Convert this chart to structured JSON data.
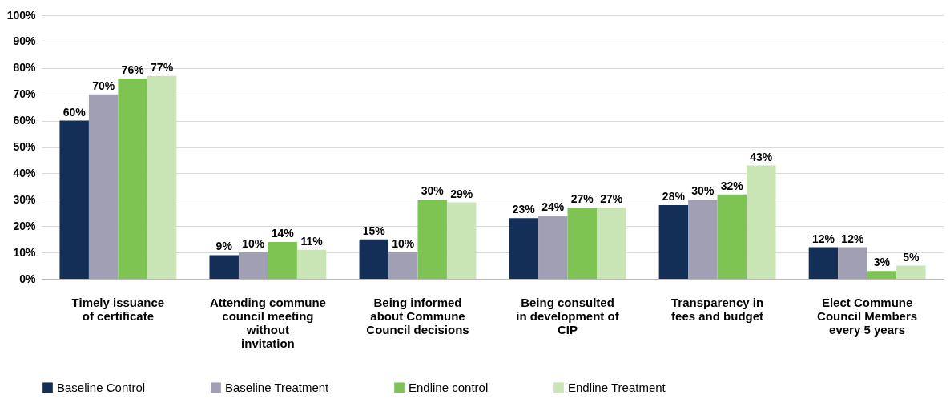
{
  "chart_data": {
    "type": "bar",
    "categories": [
      "Timely issuance of certificate",
      "Attending commune council meeting without invitation",
      "Being informed about Commune Council decisions",
      "Being consulted in development of CIP",
      "Transparency in fees and budget",
      "Elect Commune Council Members every 5 years"
    ],
    "series": [
      {
        "name": "Baseline Control",
        "color": "#132f57",
        "values": [
          60,
          9,
          15,
          23,
          28,
          12
        ],
        "value_labels": [
          "60%",
          "9%",
          "15%",
          "23%",
          "28%",
          "12%"
        ]
      },
      {
        "name": "Baseline Treatment",
        "color": "#a09fb3",
        "values": [
          70,
          10,
          10,
          24,
          30,
          12
        ],
        "value_labels": [
          "70%",
          "10%",
          "10%",
          "24%",
          "30%",
          "12%"
        ]
      },
      {
        "name": "Endline control",
        "color": "#7ec452",
        "values": [
          76,
          14,
          30,
          27,
          32,
          3
        ],
        "value_labels": [
          "76%",
          "14%",
          "30%",
          "27%",
          "32%",
          "3%"
        ]
      },
      {
        "name": "Endline Treatment",
        "color": "#c9e4b5",
        "values": [
          77,
          11,
          29,
          27,
          43,
          5
        ],
        "value_labels": [
          "77%",
          "11%",
          "29%",
          "27%",
          "43%",
          "5%"
        ]
      }
    ],
    "ylim": [
      0,
      100
    ],
    "yticks": [
      {
        "value": 0,
        "label": "0%"
      },
      {
        "value": 10,
        "label": "10%"
      },
      {
        "value": 20,
        "label": "20%"
      },
      {
        "value": 30,
        "label": "30%"
      },
      {
        "value": 40,
        "label": "40%"
      },
      {
        "value": 50,
        "label": "50%"
      },
      {
        "value": 60,
        "label": "60%"
      },
      {
        "value": 70,
        "label": "70%"
      },
      {
        "value": 80,
        "label": "80%"
      },
      {
        "value": 90,
        "label": "90%"
      },
      {
        "value": 100,
        "label": "100%"
      }
    ],
    "grid": "y",
    "legend": "bottom"
  }
}
